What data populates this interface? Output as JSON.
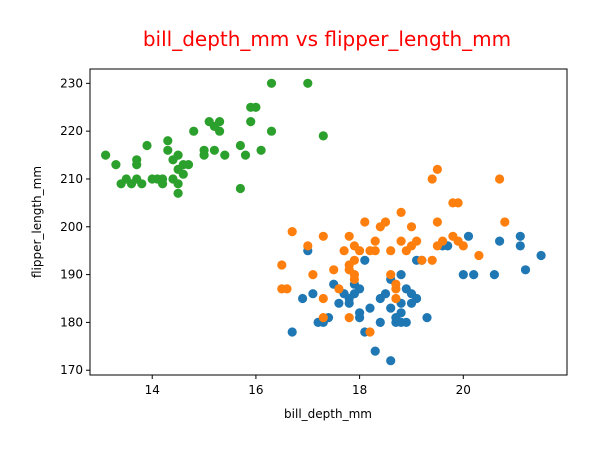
{
  "chart_data": {
    "type": "scatter",
    "title": "bill_depth_mm vs flipper_length_mm",
    "xlabel": "bill_depth_mm",
    "ylabel": "flipper_length_mm",
    "xlim": [
      12.8,
      22.0
    ],
    "ylim": [
      169,
      233
    ],
    "xticks": [
      14,
      16,
      18,
      20
    ],
    "yticks": [
      170,
      180,
      190,
      200,
      210,
      220,
      230
    ],
    "grid": false,
    "legend": "none",
    "colors": {
      "title": "#ff0000",
      "series1": "#1f77b4",
      "series2": "#ff7f0e",
      "series3": "#2ca02c",
      "axis": "#000000"
    },
    "series": [
      {
        "color": "#1f77b4",
        "points": [
          [
            16.7,
            178
          ],
          [
            17.0,
            195
          ],
          [
            17.1,
            186
          ],
          [
            16.9,
            185
          ],
          [
            17.2,
            180
          ],
          [
            17.3,
            180
          ],
          [
            17.4,
            181
          ],
          [
            17.5,
            188
          ],
          [
            17.6,
            184
          ],
          [
            17.7,
            186
          ],
          [
            17.8,
            185
          ],
          [
            17.8,
            184
          ],
          [
            17.9,
            188
          ],
          [
            17.9,
            186
          ],
          [
            18.0,
            187
          ],
          [
            18.0,
            182
          ],
          [
            18.0,
            181
          ],
          [
            18.1,
            193
          ],
          [
            18.1,
            178
          ],
          [
            18.2,
            183
          ],
          [
            18.3,
            174
          ],
          [
            18.4,
            185
          ],
          [
            18.4,
            180
          ],
          [
            18.5,
            186
          ],
          [
            18.6,
            189
          ],
          [
            18.6,
            183
          ],
          [
            18.6,
            172
          ],
          [
            18.7,
            180
          ],
          [
            18.7,
            181
          ],
          [
            18.8,
            190
          ],
          [
            18.8,
            184
          ],
          [
            18.8,
            182
          ],
          [
            18.8,
            180
          ],
          [
            18.9,
            187
          ],
          [
            18.9,
            180
          ],
          [
            19.0,
            186
          ],
          [
            19.0,
            184
          ],
          [
            19.1,
            193
          ],
          [
            19.1,
            185
          ],
          [
            19.2,
            193
          ],
          [
            19.3,
            181
          ],
          [
            19.6,
            196
          ],
          [
            19.7,
            196
          ],
          [
            20.0,
            190
          ],
          [
            20.1,
            198
          ],
          [
            20.2,
            190
          ],
          [
            20.6,
            190
          ],
          [
            20.7,
            197
          ],
          [
            21.1,
            198
          ],
          [
            21.1,
            196
          ],
          [
            21.2,
            191
          ],
          [
            21.5,
            194
          ]
        ]
      },
      {
        "color": "#ff7f0e",
        "points": [
          [
            16.5,
            192
          ],
          [
            16.5,
            187
          ],
          [
            16.6,
            187
          ],
          [
            16.7,
            199
          ],
          [
            17.0,
            196
          ],
          [
            17.1,
            190
          ],
          [
            17.3,
            198
          ],
          [
            17.3,
            185
          ],
          [
            17.3,
            181
          ],
          [
            17.5,
            191
          ],
          [
            17.6,
            187
          ],
          [
            17.7,
            195
          ],
          [
            17.8,
            192
          ],
          [
            17.8,
            191
          ],
          [
            17.8,
            181
          ],
          [
            17.8,
            198
          ],
          [
            17.9,
            196
          ],
          [
            17.9,
            193
          ],
          [
            17.9,
            190
          ],
          [
            17.9,
            189
          ],
          [
            18.0,
            195
          ],
          [
            18.1,
            201
          ],
          [
            18.2,
            195
          ],
          [
            18.2,
            178
          ],
          [
            18.3,
            195
          ],
          [
            18.3,
            197
          ],
          [
            18.4,
            200
          ],
          [
            18.5,
            201
          ],
          [
            18.6,
            195
          ],
          [
            18.6,
            190
          ],
          [
            18.7,
            185
          ],
          [
            18.7,
            187
          ],
          [
            18.7,
            188
          ],
          [
            18.8,
            197
          ],
          [
            18.8,
            203
          ],
          [
            18.9,
            195
          ],
          [
            19.0,
            200
          ],
          [
            19.0,
            196
          ],
          [
            19.1,
            197
          ],
          [
            19.2,
            193
          ],
          [
            19.4,
            210
          ],
          [
            19.4,
            193
          ],
          [
            19.5,
            212
          ],
          [
            19.5,
            196
          ],
          [
            19.5,
            201
          ],
          [
            19.6,
            197
          ],
          [
            19.8,
            205
          ],
          [
            19.8,
            198
          ],
          [
            19.9,
            205
          ],
          [
            19.9,
            197
          ],
          [
            20.0,
            196
          ],
          [
            20.3,
            194
          ],
          [
            20.7,
            210
          ],
          [
            20.8,
            201
          ]
        ]
      },
      {
        "color": "#2ca02c",
        "points": [
          [
            13.1,
            215
          ],
          [
            13.3,
            213
          ],
          [
            13.4,
            209
          ],
          [
            13.5,
            210
          ],
          [
            13.6,
            209
          ],
          [
            13.7,
            214
          ],
          [
            13.7,
            213
          ],
          [
            13.7,
            210
          ],
          [
            13.8,
            209
          ],
          [
            13.9,
            217
          ],
          [
            14.0,
            210
          ],
          [
            14.1,
            210
          ],
          [
            14.2,
            209
          ],
          [
            14.2,
            210
          ],
          [
            14.3,
            218
          ],
          [
            14.3,
            216
          ],
          [
            14.4,
            214
          ],
          [
            14.4,
            210
          ],
          [
            14.5,
            207
          ],
          [
            14.5,
            209
          ],
          [
            14.5,
            212
          ],
          [
            14.5,
            215
          ],
          [
            14.6,
            213
          ],
          [
            14.6,
            211
          ],
          [
            14.7,
            213
          ],
          [
            14.8,
            220
          ],
          [
            15.0,
            216
          ],
          [
            15.0,
            215
          ],
          [
            15.1,
            222
          ],
          [
            15.2,
            221
          ],
          [
            15.2,
            216
          ],
          [
            15.3,
            222
          ],
          [
            15.3,
            220
          ],
          [
            15.4,
            215
          ],
          [
            15.7,
            217
          ],
          [
            15.7,
            208
          ],
          [
            15.8,
            215
          ],
          [
            15.9,
            225
          ],
          [
            15.9,
            222
          ],
          [
            16.0,
            225
          ],
          [
            16.1,
            216
          ],
          [
            16.3,
            230
          ],
          [
            16.3,
            220
          ],
          [
            17.0,
            230
          ],
          [
            17.3,
            219
          ]
        ]
      }
    ]
  }
}
